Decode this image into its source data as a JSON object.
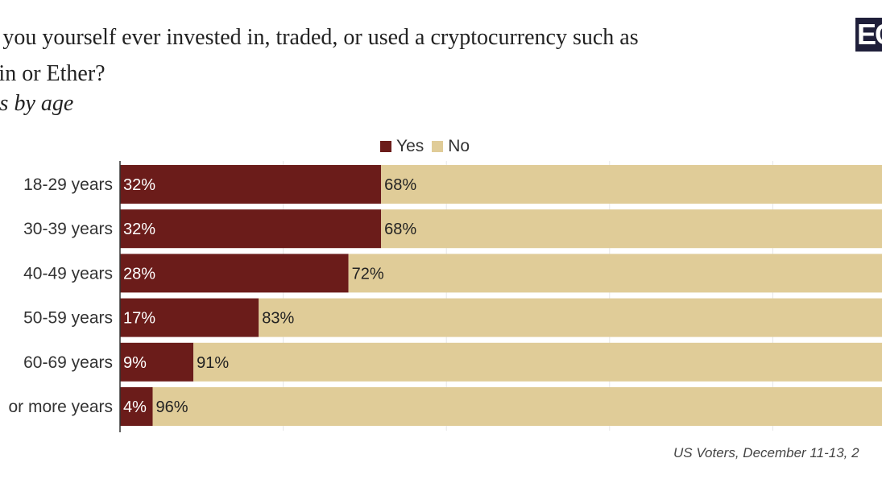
{
  "title_lines": [
    "ve you yourself ever invested in, traded, or used a cryptocurrency such as",
    "coin or Ether?"
  ],
  "subtitle": "ults by age",
  "logo_text": "EC",
  "source": "US Voters, December 11-13, 2",
  "colors": {
    "yes": "#6b1c1a",
    "no": "#e0cc98",
    "label_on_yes": "#ffffff",
    "label_on_no": "#222222"
  },
  "chart_data": {
    "type": "bar",
    "orientation": "horizontal",
    "stacked": true,
    "categories": [
      "18-29 years",
      "30-39 years",
      "40-49 years",
      "50-59 years",
      "60-69 years",
      "or more years"
    ],
    "series": [
      {
        "name": "Yes",
        "values": [
          32,
          32,
          28,
          17,
          9,
          4
        ],
        "labels": [
          "32%",
          "32%",
          "28%",
          "17%",
          "9%",
          "4%"
        ]
      },
      {
        "name": "No",
        "values": [
          68,
          68,
          72,
          83,
          91,
          96
        ],
        "labels": [
          "68%",
          "68%",
          "72%",
          "83%",
          "91%",
          "96%"
        ]
      }
    ],
    "xlim": [
      0,
      100
    ],
    "legend_position": "top"
  }
}
